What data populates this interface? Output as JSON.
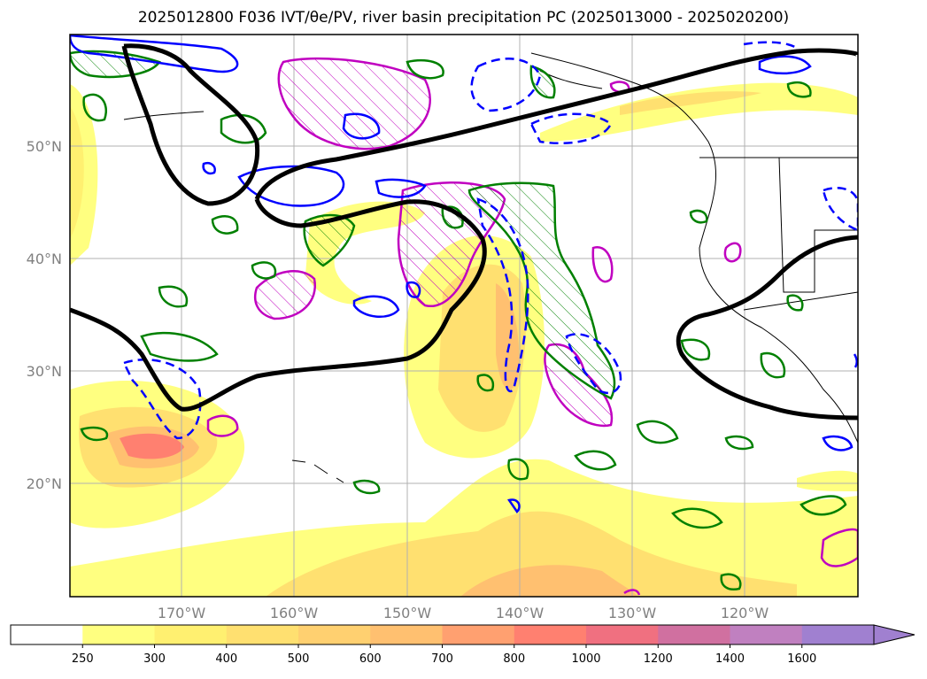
{
  "title": "2025012800 F036 IVT/θe/PV, river basin precipitation PC (2025013000 - 2025020200)",
  "axes": {
    "lat_labels": [
      "50°N",
      "40°N",
      "30°N",
      "20°N"
    ],
    "lon_labels": [
      "170°W",
      "160°W",
      "150°W",
      "140°W",
      "130°W",
      "120°W"
    ]
  },
  "colorbar": {
    "tick_labels": [
      "250",
      "300",
      "400",
      "500",
      "600",
      "700",
      "800",
      "1000",
      "1200",
      "1400",
      "1600"
    ],
    "colors": [
      "#ffffff",
      "#ffff80",
      "#fff070",
      "#ffe070",
      "#ffd070",
      "#ffc070",
      "#ffa070",
      "#ff8070",
      "#f07080",
      "#d070a0",
      "#c080c0",
      "#a080d0"
    ],
    "extend": "max"
  },
  "legend_colors": {
    "jet_contour": "#000000",
    "pv_contour": "#0000ff",
    "theta_e_contour": "#008000",
    "precip_contour": "#c000c0"
  }
}
